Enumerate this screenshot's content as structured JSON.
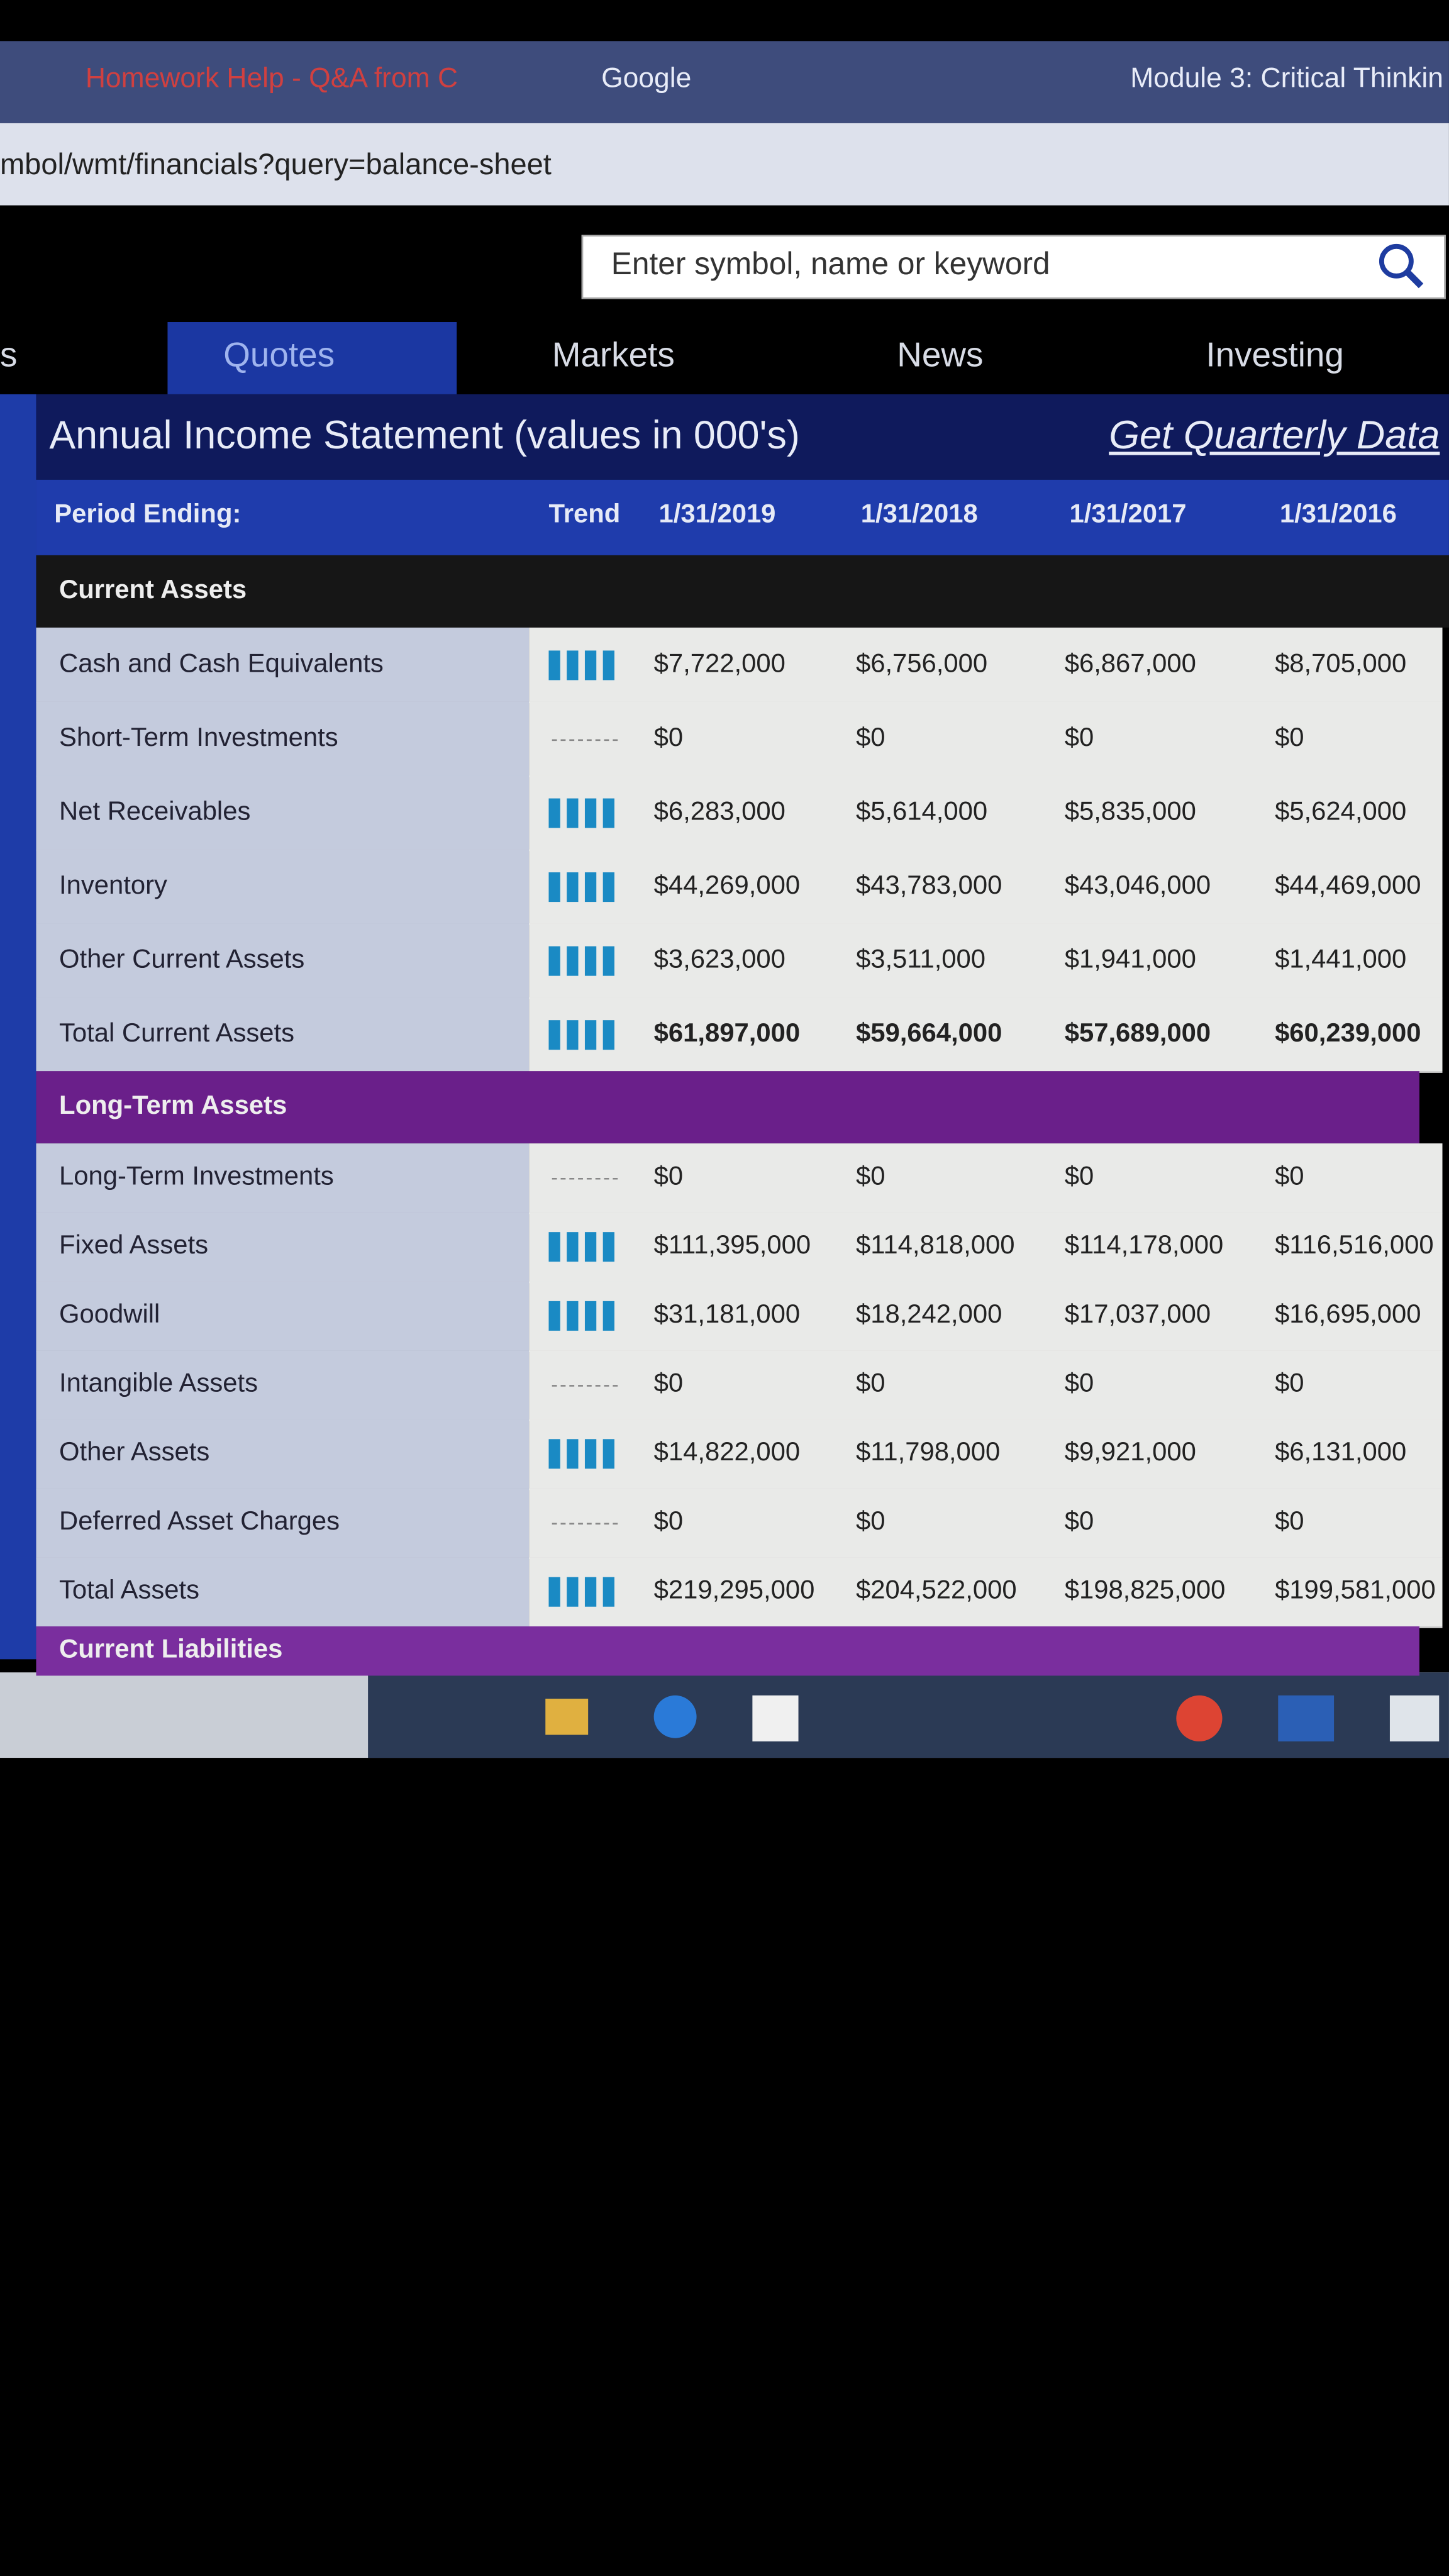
{
  "browser": {
    "tabs": [
      "Homework Help - Q&A from C",
      "Google",
      "Module 3: Critical Thinkin"
    ],
    "url": "mbol/wmt/financials?query=balance-sheet"
  },
  "search": {
    "placeholder": "Enter symbol, name or keyword"
  },
  "nav": [
    "s",
    "Quotes",
    "Markets",
    "News",
    "Investing"
  ],
  "statement": {
    "title": "Annual Income Statement (values in 000's)",
    "link": "Get Quarterly Data",
    "header": [
      "Period Ending:",
      "Trend",
      "1/31/2019",
      "1/31/2018",
      "1/31/2017",
      "1/31/2016"
    ],
    "sections": [
      {
        "name": "Current Assets",
        "rows": [
          {
            "label": "Cash and Cash Equivalents",
            "values": [
              "$7,722,000",
              "$6,756,000",
              "$6,867,000",
              "$8,705,000"
            ]
          },
          {
            "label": "Short-Term Investments",
            "values": [
              "$0",
              "$0",
              "$0",
              "$0"
            ]
          },
          {
            "label": "Net Receivables",
            "values": [
              "$6,283,000",
              "$5,614,000",
              "$5,835,000",
              "$5,624,000"
            ]
          },
          {
            "label": "Inventory",
            "values": [
              "$44,269,000",
              "$43,783,000",
              "$43,046,000",
              "$44,469,000"
            ]
          },
          {
            "label": "Other Current Assets",
            "values": [
              "$3,623,000",
              "$3,511,000",
              "$1,941,000",
              "$1,441,000"
            ]
          },
          {
            "label": "Total Current Assets",
            "values": [
              "$61,897,000",
              "$59,664,000",
              "$57,689,000",
              "$60,239,000"
            ]
          }
        ]
      },
      {
        "name": "Long-Term Assets",
        "rows": [
          {
            "label": "Long-Term Investments",
            "values": [
              "$0",
              "$0",
              "$0",
              "$0"
            ]
          },
          {
            "label": "Fixed Assets",
            "values": [
              "$111,395,000",
              "$114,818,000",
              "$114,178,000",
              "$116,516,000"
            ]
          },
          {
            "label": "Goodwill",
            "values": [
              "$31,181,000",
              "$18,242,000",
              "$17,037,000",
              "$16,695,000"
            ]
          },
          {
            "label": "Intangible Assets",
            "values": [
              "$0",
              "$0",
              "$0",
              "$0"
            ]
          },
          {
            "label": "Other Assets",
            "values": [
              "$14,822,000",
              "$11,798,000",
              "$9,921,000",
              "$6,131,000"
            ]
          },
          {
            "label": "Deferred Asset Charges",
            "values": [
              "$0",
              "$0",
              "$0",
              "$0"
            ]
          },
          {
            "label": "Total Assets",
            "values": [
              "$219,295,000",
              "$204,522,000",
              "$198,825,000",
              "$199,581,000"
            ]
          }
        ]
      },
      {
        "name": "Current Liabilities",
        "rows": []
      }
    ]
  }
}
